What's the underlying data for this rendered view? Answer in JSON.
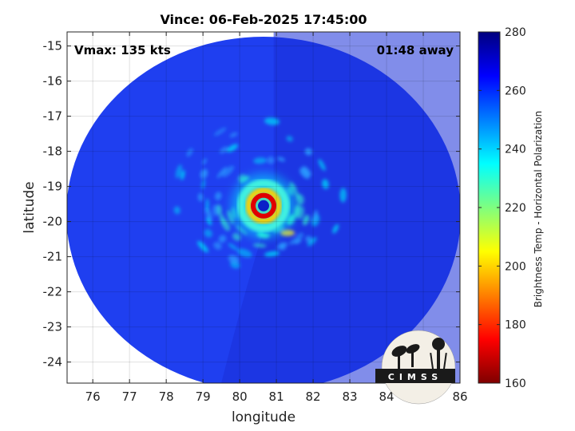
{
  "figure": {
    "title": "Vince: 06-Feb-2025 17:45:00",
    "vmax_label": "Vmax: 135 kts",
    "time_away_label": "01:48 away",
    "xlabel": "longitude",
    "ylabel": "latitude",
    "colorbar_label": "Brightness Temp - Horizontal Polarization",
    "logo_text": "CIMSS"
  },
  "axes": {
    "xlim": [
      75.3,
      86.0
    ],
    "ylim": [
      -24.6,
      -14.6
    ],
    "xticks": [
      76,
      77,
      78,
      79,
      80,
      81,
      82,
      83,
      84,
      85,
      86
    ],
    "yticks": [
      -15,
      -16,
      -17,
      -18,
      -19,
      -20,
      -21,
      -22,
      -23,
      -24
    ],
    "grid": true
  },
  "colorbar": {
    "min": 160,
    "max": 280,
    "ticks": [
      280,
      260,
      240,
      220,
      200,
      180,
      160
    ],
    "colormap": "jet"
  },
  "map": {
    "swath_center_lon": 80.75,
    "swath_center_lat": -19.85,
    "eye_center_lon": 80.65,
    "eye_center_lat": -19.55,
    "background_color": "#1f3ff0",
    "swath_edge_color": "#2a4ff8"
  },
  "colors": {
    "jet_stops": [
      "#00007f",
      "#0000ff",
      "#007fff",
      "#00ffff",
      "#7fff7f",
      "#ffff00",
      "#ff7f00",
      "#ff0000",
      "#7f0000"
    ]
  }
}
